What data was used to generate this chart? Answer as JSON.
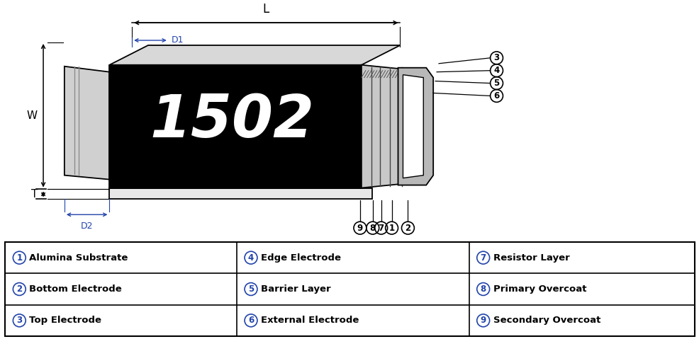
{
  "bg_color": "#ffffff",
  "line_color": "#000000",
  "resistor_text": "1502",
  "blue_color": "#2244aa",
  "table_circle_nums": [
    "1",
    "2",
    "3",
    "4",
    "5",
    "6",
    "7",
    "8",
    "9"
  ],
  "table_labels": [
    "Alumina Substrate",
    "Bottom Electrode",
    "Top Electrode",
    "Edge Electrode",
    "Barrier Layer",
    "External Electrode",
    "Resistor Layer",
    "Primary Overcoat",
    "Secondary Overcoat"
  ],
  "dim_color": "#000000",
  "dim_blue": "#2244aa"
}
